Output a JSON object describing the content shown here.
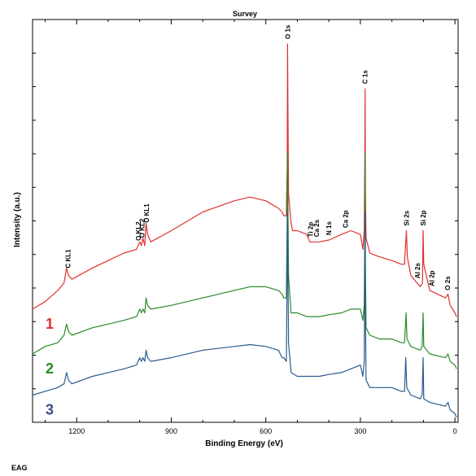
{
  "chart_data": {
    "type": "line",
    "title": "Survey",
    "xlabel": "Binding Energy (eV)",
    "ylabel": "Intensity (a.u.)",
    "xlim": [
      1340,
      -10
    ],
    "x_reversed": true,
    "xticks": [
      1200,
      900,
      600,
      300,
      0
    ],
    "ylim": [
      0,
      100
    ],
    "y_tick_labels_shown": false,
    "grid": false,
    "series": [
      {
        "name": "1",
        "color": "#e03030",
        "label_color": "#e03030",
        "points": [
          [
            1340,
            29
          ],
          [
            1300,
            31
          ],
          [
            1260,
            34
          ],
          [
            1240,
            36
          ],
          [
            1232,
            40
          ],
          [
            1226,
            38
          ],
          [
            1215,
            37
          ],
          [
            1150,
            40
          ],
          [
            1100,
            42
          ],
          [
            1050,
            44
          ],
          [
            1010,
            45
          ],
          [
            1000,
            47
          ],
          [
            995,
            46
          ],
          [
            990,
            48
          ],
          [
            984,
            46
          ],
          [
            980,
            52
          ],
          [
            975,
            49
          ],
          [
            965,
            47
          ],
          [
            900,
            50
          ],
          [
            800,
            55
          ],
          [
            700,
            58
          ],
          [
            650,
            59
          ],
          [
            600,
            58
          ],
          [
            560,
            56
          ],
          [
            548,
            55
          ],
          [
            543,
            54
          ],
          [
            535,
            54
          ],
          [
            532,
            68
          ],
          [
            531,
            100
          ],
          [
            530,
            85
          ],
          [
            528,
            60
          ],
          [
            520,
            52
          ],
          [
            515,
            50
          ],
          [
            500,
            50
          ],
          [
            470,
            49
          ],
          [
            460,
            47
          ],
          [
            430,
            47
          ],
          [
            400,
            47.5
          ],
          [
            360,
            49
          ],
          [
            330,
            50
          ],
          [
            300,
            49
          ],
          [
            292,
            45
          ],
          [
            288,
            50
          ],
          [
            286,
            67
          ],
          [
            285,
            88
          ],
          [
            284,
            60
          ],
          [
            282,
            48
          ],
          [
            270,
            44
          ],
          [
            240,
            43
          ],
          [
            200,
            42
          ],
          [
            170,
            41
          ],
          [
            160,
            41
          ],
          [
            154,
            50
          ],
          [
            151,
            43
          ],
          [
            140,
            38
          ],
          [
            110,
            35
          ],
          [
            103,
            36
          ],
          [
            101,
            50
          ],
          [
            99,
            41
          ],
          [
            80,
            34
          ],
          [
            30,
            32
          ],
          [
            22,
            33
          ],
          [
            15,
            30
          ],
          [
            0,
            28
          ],
          [
            -5,
            27
          ]
        ]
      },
      {
        "name": "2",
        "color": "#2a8a2a",
        "label_color": "#2a8a2a",
        "points": [
          [
            1340,
            17
          ],
          [
            1300,
            19
          ],
          [
            1260,
            20
          ],
          [
            1240,
            22
          ],
          [
            1232,
            25
          ],
          [
            1226,
            23
          ],
          [
            1215,
            22
          ],
          [
            1150,
            24
          ],
          [
            1100,
            25
          ],
          [
            1050,
            26
          ],
          [
            1010,
            27
          ],
          [
            1000,
            29
          ],
          [
            995,
            28
          ],
          [
            990,
            29
          ],
          [
            984,
            28
          ],
          [
            980,
            32
          ],
          [
            975,
            30
          ],
          [
            965,
            29
          ],
          [
            900,
            30
          ],
          [
            800,
            32
          ],
          [
            700,
            34
          ],
          [
            650,
            35
          ],
          [
            600,
            35
          ],
          [
            560,
            34
          ],
          [
            548,
            33
          ],
          [
            543,
            32
          ],
          [
            535,
            32
          ],
          [
            532,
            55
          ],
          [
            531,
            71
          ],
          [
            530,
            60
          ],
          [
            528,
            38
          ],
          [
            520,
            28
          ],
          [
            500,
            28
          ],
          [
            470,
            27
          ],
          [
            430,
            27
          ],
          [
            400,
            27.5
          ],
          [
            360,
            28
          ],
          [
            330,
            29
          ],
          [
            300,
            29
          ],
          [
            292,
            26
          ],
          [
            288,
            30
          ],
          [
            286,
            48
          ],
          [
            285,
            71
          ],
          [
            284,
            40
          ],
          [
            282,
            24
          ],
          [
            270,
            22
          ],
          [
            240,
            21
          ],
          [
            200,
            21
          ],
          [
            170,
            20
          ],
          [
            160,
            20
          ],
          [
            155,
            28
          ],
          [
            152,
            21
          ],
          [
            140,
            19
          ],
          [
            110,
            18
          ],
          [
            104,
            19
          ],
          [
            101,
            28
          ],
          [
            99,
            19
          ],
          [
            80,
            17
          ],
          [
            30,
            16
          ],
          [
            22,
            17
          ],
          [
            15,
            15
          ],
          [
            0,
            14
          ],
          [
            -5,
            13
          ]
        ]
      },
      {
        "name": "3",
        "color": "#2a5a8e",
        "label_color": "#3a4a8e",
        "points": [
          [
            1340,
            6
          ],
          [
            1300,
            7
          ],
          [
            1260,
            8
          ],
          [
            1240,
            9
          ],
          [
            1232,
            12
          ],
          [
            1226,
            10
          ],
          [
            1215,
            9
          ],
          [
            1150,
            11
          ],
          [
            1100,
            12
          ],
          [
            1050,
            13
          ],
          [
            1010,
            14
          ],
          [
            1000,
            16
          ],
          [
            995,
            15
          ],
          [
            990,
            16
          ],
          [
            984,
            15
          ],
          [
            980,
            18
          ],
          [
            975,
            16
          ],
          [
            965,
            15
          ],
          [
            900,
            16
          ],
          [
            800,
            18
          ],
          [
            700,
            19
          ],
          [
            650,
            19.5
          ],
          [
            600,
            19
          ],
          [
            560,
            18
          ],
          [
            548,
            16
          ],
          [
            543,
            16
          ],
          [
            535,
            15
          ],
          [
            532,
            40
          ],
          [
            531,
            55
          ],
          [
            530,
            45
          ],
          [
            528,
            20
          ],
          [
            520,
            12
          ],
          [
            500,
            11
          ],
          [
            470,
            11
          ],
          [
            430,
            11
          ],
          [
            400,
            11.5
          ],
          [
            360,
            12
          ],
          [
            330,
            13
          ],
          [
            300,
            14
          ],
          [
            292,
            11
          ],
          [
            288,
            15
          ],
          [
            286,
            35
          ],
          [
            285,
            55
          ],
          [
            284,
            28
          ],
          [
            282,
            10
          ],
          [
            270,
            8
          ],
          [
            240,
            8
          ],
          [
            200,
            8
          ],
          [
            170,
            7
          ],
          [
            160,
            7
          ],
          [
            156,
            16
          ],
          [
            153,
            8
          ],
          [
            140,
            6
          ],
          [
            110,
            5
          ],
          [
            104,
            6
          ],
          [
            101,
            16
          ],
          [
            99,
            5
          ],
          [
            80,
            4
          ],
          [
            30,
            3
          ],
          [
            22,
            4
          ],
          [
            15,
            2
          ],
          [
            0,
            1
          ],
          [
            -5,
            0
          ]
        ]
      }
    ],
    "peak_annotations": [
      {
        "label": "C KL1",
        "x": 1228,
        "series": "1"
      },
      {
        "label": "O KL2",
        "x": 1005,
        "series": "1"
      },
      {
        "label": "O KL2",
        "x": 993,
        "series": "1"
      },
      {
        "label": "O KL1",
        "x": 978,
        "series": "1"
      },
      {
        "label": "O 1s",
        "x": 531,
        "series": "1"
      },
      {
        "label": "Ti 2p",
        "x": 459,
        "series": "1"
      },
      {
        "label": "Ca 2s",
        "x": 439,
        "series": "1"
      },
      {
        "label": "N 1s",
        "x": 400,
        "series": "1"
      },
      {
        "label": "Ca 2p",
        "x": 347,
        "series": "1"
      },
      {
        "label": "C 1s",
        "x": 285,
        "series": "1"
      },
      {
        "label": "Si 2s",
        "x": 154,
        "series": "1"
      },
      {
        "label": "Al 2s",
        "x": 119,
        "series": "1"
      },
      {
        "label": "Si 2p",
        "x": 101,
        "series": "1"
      },
      {
        "label": "Al 2p",
        "x": 74,
        "series": "1"
      },
      {
        "label": "O 2s",
        "x": 24,
        "series": "1"
      }
    ]
  },
  "footer": {
    "text": "EAG"
  }
}
